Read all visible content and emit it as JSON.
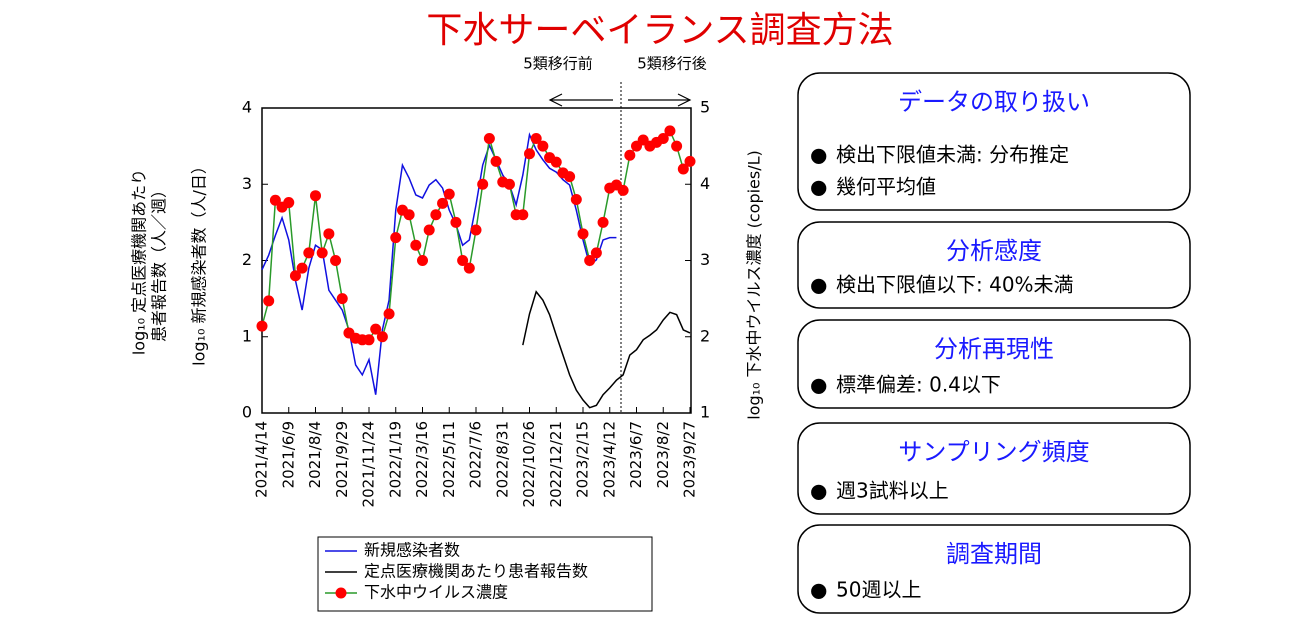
{
  "chart_data": {
    "type": "line",
    "title": "下水サーベイランス調査方法",
    "y_label_outer": [
      "log₁₀ 定点医療機関あたり",
      "患者報告数（人／週）"
    ],
    "y_label": "log₁₀ 新規感染者数（人/日）",
    "y2_label": "log₁₀ 下水中ウイルス濃度 (copies/L)",
    "annotations": [
      "5類移行前",
      "5類移行後"
    ],
    "xlim": [
      "2021/4/14",
      "2023/9/27"
    ],
    "xticks": [
      "2021/4/14",
      "2021/6/9",
      "2021/8/4",
      "2021/9/29",
      "2021/11/24",
      "2022/1/19",
      "2022/3/16",
      "2022/5/11",
      "2022/7/6",
      "2022/8/31",
      "2022/10/26",
      "2022/12/21",
      "2023/2/15",
      "2023/4/12",
      "2023/6/7",
      "2023/8/2",
      "2023/9/27"
    ],
    "ylim": [
      0,
      4
    ],
    "yticks": [
      0,
      1,
      2,
      3,
      4
    ],
    "y2lim": [
      1,
      5
    ],
    "y2ticks": [
      1,
      2,
      3,
      4,
      5
    ],
    "x": [
      "2021/4/14",
      "2021/4/28",
      "2021/5/12",
      "2021/5/26",
      "2021/6/9",
      "2021/6/23",
      "2021/7/7",
      "2021/7/21",
      "2021/8/4",
      "2021/8/18",
      "2021/9/1",
      "2021/9/15",
      "2021/9/29",
      "2021/10/13",
      "2021/10/27",
      "2021/11/10",
      "2021/11/24",
      "2021/12/8",
      "2021/12/22",
      "2022/1/5",
      "2022/1/19",
      "2022/2/2",
      "2022/2/16",
      "2022/3/2",
      "2022/3/16",
      "2022/3/30",
      "2022/4/13",
      "2022/4/27",
      "2022/5/11",
      "2022/5/25",
      "2022/6/8",
      "2022/6/22",
      "2022/7/6",
      "2022/7/20",
      "2022/8/3",
      "2022/8/17",
      "2022/8/31",
      "2022/9/14",
      "2022/9/28",
      "2022/10/12",
      "2022/10/26",
      "2022/11/9",
      "2022/11/23",
      "2022/12/7",
      "2022/12/21",
      "2023/1/4",
      "2023/1/18",
      "2023/2/1",
      "2023/2/15",
      "2023/3/1",
      "2023/3/15",
      "2023/3/29",
      "2023/4/12",
      "2023/4/26",
      "2023/5/10",
      "2023/5/24",
      "2023/6/7",
      "2023/6/21",
      "2023/7/5",
      "2023/7/19",
      "2023/8/2",
      "2023/8/16",
      "2023/8/30",
      "2023/9/13",
      "2023/9/27"
    ],
    "series": [
      {
        "name": "新規感染者数",
        "color": "#1010e0",
        "values": [
          1.88,
          2.07,
          2.33,
          2.56,
          2.27,
          1.74,
          1.35,
          1.9,
          2.2,
          2.14,
          1.61,
          1.48,
          1.35,
          1.09,
          0.63,
          0.5,
          0.7,
          0.24,
          1.09,
          1.48,
          2.66,
          3.25,
          3.08,
          2.86,
          2.82,
          2.99,
          3.06,
          2.95,
          2.66,
          2.47,
          2.2,
          2.27,
          2.73,
          3.25,
          3.51,
          3.32,
          3.12,
          2.99,
          2.73,
          3.12,
          3.65,
          3.45,
          3.32,
          3.21,
          3.16,
          3.06,
          2.99,
          2.66,
          2.27,
          1.94,
          2.01,
          2.27,
          2.3,
          2.3,
          null,
          null,
          null,
          null,
          null,
          null,
          null,
          null,
          null,
          null,
          null
        ]
      },
      {
        "name": "定点医療機関あたり患者報告数",
        "color": "#000000",
        "values": [
          null,
          null,
          null,
          null,
          null,
          null,
          null,
          null,
          null,
          null,
          null,
          null,
          null,
          null,
          null,
          null,
          null,
          null,
          null,
          null,
          null,
          null,
          null,
          null,
          null,
          null,
          null,
          null,
          null,
          null,
          null,
          null,
          null,
          null,
          null,
          null,
          null,
          null,
          null,
          0.89,
          1.3,
          1.59,
          1.48,
          1.29,
          1.02,
          0.76,
          0.5,
          0.3,
          0.17,
          0.07,
          0.1,
          0.24,
          0.33,
          0.43,
          0.5,
          0.76,
          0.83,
          0.96,
          1.02,
          1.09,
          1.22,
          1.32,
          1.29,
          1.09,
          1.05
        ]
      },
      {
        "name": "下水中ウイルス濃度",
        "color": "#ff0000",
        "line_color": "#2a9a2a",
        "axis": "y2",
        "values": [
          2.14,
          2.47,
          3.79,
          3.7,
          3.76,
          2.8,
          2.9,
          3.1,
          3.85,
          3.1,
          3.35,
          3.0,
          2.5,
          2.05,
          1.98,
          1.96,
          1.96,
          2.1,
          2.0,
          2.3,
          3.3,
          3.66,
          3.6,
          3.2,
          3.0,
          3.4,
          3.6,
          3.75,
          3.87,
          3.5,
          3.0,
          2.9,
          3.4,
          4.0,
          4.6,
          4.3,
          4.03,
          4.0,
          3.6,
          3.6,
          4.4,
          4.6,
          4.5,
          4.35,
          4.29,
          4.15,
          4.1,
          3.8,
          3.35,
          3.0,
          3.1,
          3.5,
          3.95,
          3.99,
          3.92,
          4.38,
          4.5,
          4.58,
          4.5,
          4.55,
          4.6,
          4.7,
          4.5,
          4.2,
          4.3
        ]
      }
    ]
  },
  "panels": [
    {
      "title": "データの取り扱い",
      "items": [
        "検出下限値未満: 分布推定",
        "幾何平均値"
      ]
    },
    {
      "title": "分析感度",
      "items": [
        "検出下限値以下: 40%未満"
      ]
    },
    {
      "title": "分析再現性",
      "items": [
        "標準偏差: 0.4以下"
      ]
    },
    {
      "title": "サンプリング頻度",
      "items": [
        "週3試料以上"
      ]
    },
    {
      "title": "調査期間",
      "items": [
        "50週以上"
      ]
    }
  ]
}
